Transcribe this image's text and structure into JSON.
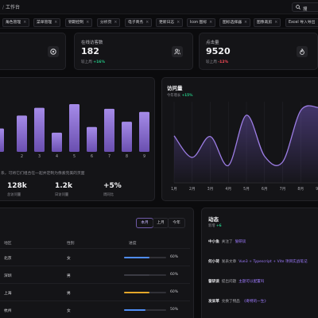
{
  "header": {
    "breadcrumb_sep": "/",
    "breadcrumb": "工作台",
    "search_label": "搜"
  },
  "tabs": [
    {
      "label": "角色管理"
    },
    {
      "label": "菜单管理"
    },
    {
      "label": "钥期控制"
    },
    {
      "label": "分析页"
    },
    {
      "label": "电子商务"
    },
    {
      "label": "更新日志"
    },
    {
      "label": "Icon 图标"
    },
    {
      "label": "图标选择器"
    },
    {
      "label": "图像裁剪"
    },
    {
      "label": "Excel 导入导出"
    }
  ],
  "tab_close": "×",
  "stats": [
    {
      "title": "在线访客数",
      "value": "182",
      "sub_prefix": "较上周",
      "change": "+16%",
      "trend": "up",
      "icon": "users-icon"
    },
    {
      "title": "点击量",
      "value": "9520",
      "sub_prefix": "较上周",
      "change": "-12%",
      "trend": "down",
      "icon": "fire-icon"
    }
  ],
  "stat_partial_icon": "disc-icon",
  "bar_panel": {
    "description": "系，可将它们组合在一起并定制为像素完美的页面",
    "metrics": [
      {
        "value": "128k",
        "label": "总访问量"
      },
      {
        "value": "1.2k",
        "label": "日访问量"
      },
      {
        "value": "+5%",
        "label": "周同比"
      }
    ]
  },
  "visits": {
    "title": "访问量",
    "sub_prefix": "今年增长",
    "change": "+15%"
  },
  "table_card": {
    "ranges": [
      {
        "label": "本月",
        "active": true
      },
      {
        "label": "上月",
        "active": false
      },
      {
        "label": "今年",
        "active": false
      }
    ],
    "headers": {
      "region": "地区",
      "gender": "性别",
      "progress": "进度"
    },
    "rows": [
      {
        "region": "北京",
        "gender": "女",
        "progress": 0.6,
        "label": "60%",
        "color": "#4f8df5"
      },
      {
        "region": "深圳",
        "gender": "男",
        "progress": 0.6,
        "label": "60%",
        "color": "#3c3c44"
      },
      {
        "region": "上海",
        "gender": "男",
        "progress": 0.6,
        "label": "60%",
        "color": "#e4a72a"
      },
      {
        "region": "杭州",
        "gender": "女",
        "progress": 0.5,
        "label": "50%",
        "color": "#4f8df5"
      }
    ]
  },
  "activity": {
    "title": "动态",
    "sub_prefix": "新增",
    "count": "+6",
    "items": [
      {
        "user": "中小鱼",
        "action": "关注了",
        "target": "誓研谈"
      },
      {
        "user": "何小荷",
        "action": "发表文章",
        "target": "Vue3 + Typescript + Vite 项目实战笔记"
      },
      {
        "user": "誓研谈",
        "action": "提出问题",
        "target": "主题可以配置吗"
      },
      {
        "user": "发呆草",
        "action": "兑换了物品",
        "target": "《奇特的一生》"
      }
    ]
  },
  "chart_data": [
    {
      "type": "bar",
      "categories": [
        "",
        "2",
        "3",
        "4",
        "5",
        "6",
        "7",
        "8",
        "9"
      ],
      "values": [
        45,
        70,
        85,
        37,
        92,
        48,
        83,
        58,
        77
      ],
      "color": "#9c7de4"
    },
    {
      "type": "line",
      "title": "访问量",
      "categories": [
        "1月",
        "2月",
        "3月",
        "4月",
        "5月",
        "6月",
        "7月",
        "8月",
        "9月"
      ],
      "ylim": [
        0,
        350
      ],
      "values": [
        203,
        110,
        200,
        75,
        292,
        115,
        90,
        312,
        325
      ],
      "color": "#9c7de4"
    }
  ]
}
